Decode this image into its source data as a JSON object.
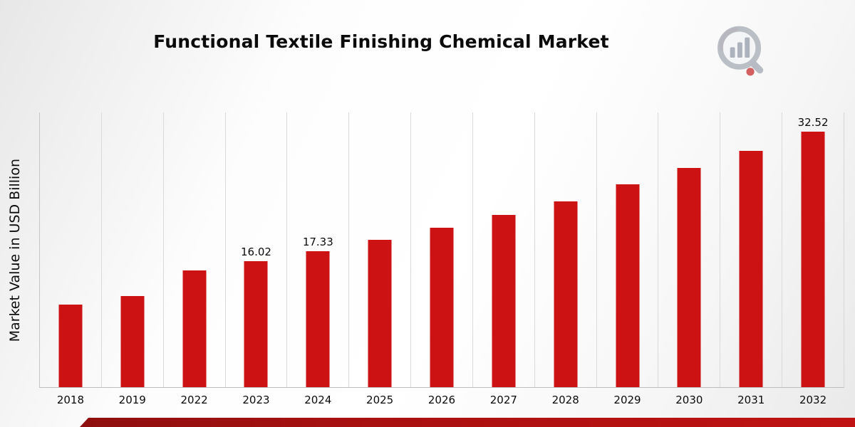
{
  "chart_data": {
    "type": "bar",
    "title": "Functional Textile Finishing Chemical Market",
    "xlabel": "",
    "ylabel": "Market Value in USD Billion",
    "categories": [
      "2018",
      "2019",
      "2022",
      "2023",
      "2024",
      "2025",
      "2026",
      "2027",
      "2028",
      "2029",
      "2030",
      "2031",
      "2032"
    ],
    "values": [
      10.5,
      11.6,
      14.9,
      16.02,
      17.33,
      18.8,
      20.3,
      21.9,
      23.7,
      25.8,
      27.9,
      30.1,
      32.52
    ],
    "data_labels": [
      "",
      "",
      "",
      "16.02",
      "17.33",
      "",
      "",
      "",
      "",
      "",
      "",
      "",
      "32.52"
    ],
    "ylim": [
      0,
      35
    ],
    "grid": "vertical-only",
    "legend": "none",
    "bar_color": "#cc1212"
  },
  "branding": {
    "logo_icon": "bar-chart-magnifier-logo"
  },
  "colors": {
    "bar": "#cc1212",
    "ribbon_dark": "#8e0f0f",
    "ribbon_light": "#c01212",
    "gridline": "#dadada",
    "background_light": "#ffffff",
    "background_shade": "#e7e7e7"
  }
}
